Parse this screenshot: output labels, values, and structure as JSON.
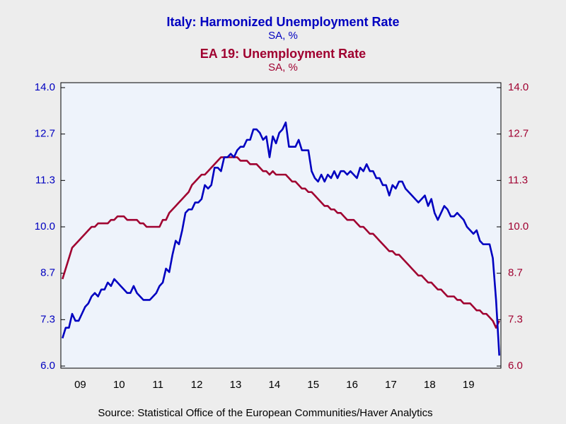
{
  "chart_data": {
    "type": "line",
    "source": "Source:  Statistical Office of the European Communities/Haver Analytics",
    "categories": [
      null,
      null,
      null,
      null,
      null,
      null,
      "09",
      null,
      null,
      null,
      null,
      null,
      null,
      null,
      null,
      null,
      null,
      null,
      "10",
      null,
      null,
      null,
      null,
      null,
      null,
      null,
      null,
      null,
      null,
      null,
      "11",
      null,
      null,
      null,
      null,
      null,
      null,
      null,
      null,
      null,
      null,
      null,
      "12",
      null,
      null,
      null,
      null,
      null,
      null,
      null,
      null,
      null,
      null,
      null,
      "13",
      null,
      null,
      null,
      null,
      null,
      null,
      null,
      null,
      null,
      null,
      null,
      "14",
      null,
      null,
      null,
      null,
      null,
      null,
      null,
      null,
      null,
      null,
      null,
      "15",
      null,
      null,
      null,
      null,
      null,
      null,
      null,
      null,
      null,
      null,
      null,
      "16",
      null,
      null,
      null,
      null,
      null,
      null,
      null,
      null,
      null,
      null,
      null,
      "17",
      null,
      null,
      null,
      null,
      null,
      null,
      null,
      null,
      null,
      null,
      null,
      "18",
      null,
      null,
      null,
      null,
      null,
      null,
      null,
      null,
      null,
      null,
      null,
      "19",
      null,
      null,
      null,
      null,
      null,
      null,
      null,
      null,
      null
    ],
    "series": [
      {
        "name": "Italy: Harmonized Unemployment Rate",
        "units": "SA, %",
        "color": "#0000c0",
        "axis": "y",
        "values": [
          6.8,
          7.1,
          7.1,
          7.5,
          7.3,
          7.3,
          7.5,
          7.7,
          7.8,
          8.0,
          8.1,
          8.0,
          8.2,
          8.2,
          8.4,
          8.3,
          8.5,
          8.4,
          8.3,
          8.2,
          8.1,
          8.1,
          8.3,
          8.1,
          8.0,
          7.9,
          7.9,
          7.9,
          8.0,
          8.1,
          8.3,
          8.4,
          8.8,
          8.7,
          9.2,
          9.6,
          9.5,
          9.9,
          10.4,
          10.5,
          10.5,
          10.7,
          10.7,
          10.8,
          11.2,
          11.1,
          11.2,
          11.7,
          11.7,
          11.6,
          12.0,
          12.0,
          12.1,
          12.0,
          12.2,
          12.3,
          12.3,
          12.5,
          12.5,
          12.8,
          12.8,
          12.7,
          12.5,
          12.6,
          12.0,
          12.6,
          12.4,
          12.7,
          12.8,
          13.0,
          12.3,
          12.3,
          12.3,
          12.5,
          12.2,
          12.2,
          12.2,
          11.6,
          11.4,
          11.3,
          11.5,
          11.3,
          11.5,
          11.4,
          11.6,
          11.4,
          11.6,
          11.6,
          11.5,
          11.6,
          11.5,
          11.4,
          11.7,
          11.6,
          11.8,
          11.6,
          11.6,
          11.4,
          11.4,
          11.2,
          11.2,
          10.9,
          11.2,
          11.1,
          11.3,
          11.3,
          11.1,
          11.0,
          10.9,
          10.8,
          10.7,
          10.8,
          10.9,
          10.6,
          10.8,
          10.4,
          10.2,
          10.4,
          10.6,
          10.5,
          10.3,
          10.3,
          10.4,
          10.3,
          10.2,
          10.0,
          9.9,
          9.8,
          9.9,
          9.6,
          9.5,
          9.5,
          9.5,
          9.1,
          7.9,
          6.3
        ]
      },
      {
        "name": "EA 19: Unemployment Rate",
        "units": "SA, %",
        "color": "#a00030",
        "axis": "y2",
        "values": [
          8.5,
          8.8,
          9.1,
          9.4,
          9.5,
          9.6,
          9.7,
          9.8,
          9.9,
          10.0,
          10.0,
          10.1,
          10.1,
          10.1,
          10.1,
          10.2,
          10.2,
          10.3,
          10.3,
          10.3,
          10.2,
          10.2,
          10.2,
          10.2,
          10.1,
          10.1,
          10.0,
          10.0,
          10.0,
          10.0,
          10.0,
          10.2,
          10.2,
          10.4,
          10.5,
          10.6,
          10.7,
          10.8,
          10.9,
          11.0,
          11.2,
          11.3,
          11.4,
          11.5,
          11.5,
          11.6,
          11.7,
          11.8,
          11.9,
          12.0,
          12.0,
          12.0,
          12.0,
          12.0,
          12.0,
          11.9,
          11.9,
          11.9,
          11.8,
          11.8,
          11.8,
          11.7,
          11.6,
          11.6,
          11.5,
          11.6,
          11.5,
          11.5,
          11.5,
          11.5,
          11.4,
          11.3,
          11.3,
          11.2,
          11.1,
          11.1,
          11.0,
          11.0,
          10.9,
          10.8,
          10.7,
          10.6,
          10.6,
          10.5,
          10.5,
          10.4,
          10.4,
          10.3,
          10.2,
          10.2,
          10.2,
          10.1,
          10.0,
          10.0,
          9.9,
          9.8,
          9.8,
          9.7,
          9.6,
          9.5,
          9.4,
          9.3,
          9.3,
          9.2,
          9.2,
          9.1,
          9.0,
          8.9,
          8.8,
          8.7,
          8.6,
          8.6,
          8.5,
          8.4,
          8.4,
          8.3,
          8.2,
          8.2,
          8.1,
          8.0,
          8.0,
          8.0,
          7.9,
          7.9,
          7.8,
          7.8,
          7.8,
          7.7,
          7.6,
          7.6,
          7.5,
          7.5,
          7.4,
          7.3,
          7.1,
          7.3
        ]
      }
    ],
    "ylim": [
      6,
      14
    ],
    "yticks": [
      {
        "value": 6,
        "label": "6.0"
      },
      {
        "value": 7.3333,
        "label": "7.3"
      },
      {
        "value": 8.6667,
        "label": "8.7"
      },
      {
        "value": 10,
        "label": "10.0"
      },
      {
        "value": 11.3333,
        "label": "11.3"
      },
      {
        "value": 12.6667,
        "label": "12.7"
      },
      {
        "value": 14,
        "label": "14.0"
      }
    ],
    "y2lim": [
      6,
      14
    ],
    "y2ticks": [
      {
        "value": 6,
        "label": "6.0"
      },
      {
        "value": 7.3333,
        "label": "7.3"
      },
      {
        "value": 8.6667,
        "label": "8.7"
      },
      {
        "value": 10,
        "label": "10.0"
      },
      {
        "value": 11.3333,
        "label": "11.3"
      },
      {
        "value": 12.6667,
        "label": "12.7"
      },
      {
        "value": 14,
        "label": "14.0"
      }
    ],
    "grid": false
  }
}
